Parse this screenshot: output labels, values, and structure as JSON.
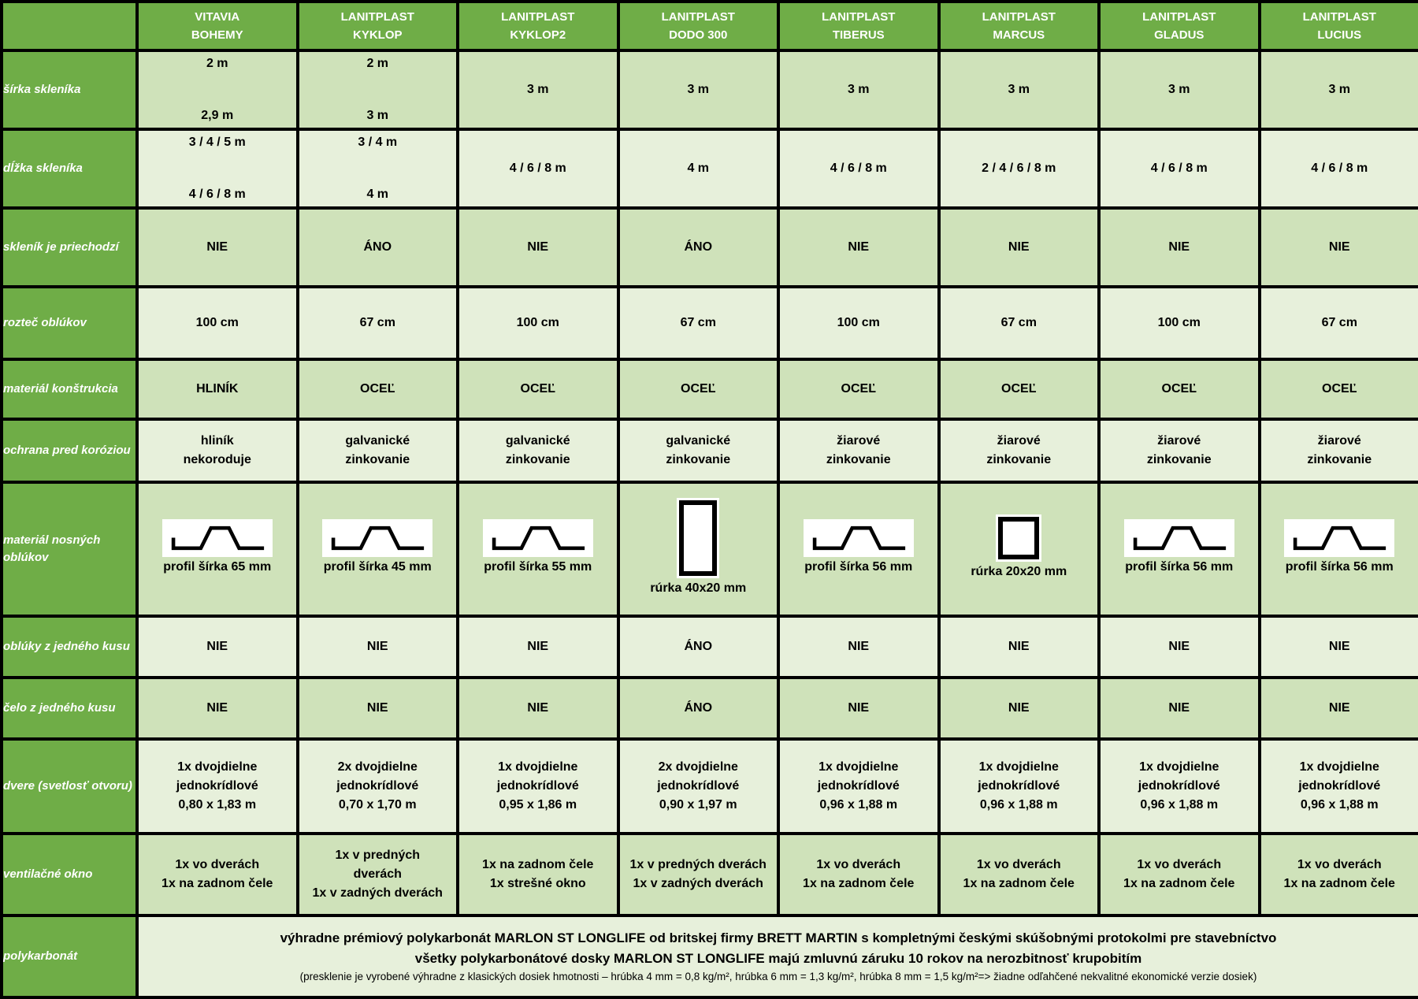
{
  "colors": {
    "header_green": "#6fad47",
    "row_dark": "#cfe2ba",
    "row_light": "#e7f0db",
    "border": "#000000",
    "header_text": "#ffffff",
    "cell_text": "#000000",
    "icon_bg": "#ffffff"
  },
  "table": {
    "corner": "",
    "columns": [
      {
        "line1": "VITAVIA",
        "line2": "BOHEMY"
      },
      {
        "line1": "LANITPLAST",
        "line2": "KYKLOP"
      },
      {
        "line1": "LANITPLAST",
        "line2": "KYKLOP2"
      },
      {
        "line1": "LANITPLAST",
        "line2": "DODO 300"
      },
      {
        "line1": "LANITPLAST",
        "line2": "TIBERUS"
      },
      {
        "line1": "LANITPLAST",
        "line2": "MARCUS"
      },
      {
        "line1": "LANITPLAST",
        "line2": "GLADUS"
      },
      {
        "line1": "LANITPLAST",
        "line2": "LUCIUS"
      }
    ],
    "rows": [
      {
        "id": "sirka-sklenika",
        "label": "šírka skleníka",
        "shade": "dark",
        "spread": true,
        "type": "text",
        "values": [
          [
            "2 m",
            "2,9 m"
          ],
          [
            "2 m",
            "3 m"
          ],
          [
            "3 m"
          ],
          [
            "3 m"
          ],
          [
            "3 m"
          ],
          [
            "3 m"
          ],
          [
            "3 m"
          ],
          [
            "3 m"
          ]
        ]
      },
      {
        "id": "dlzka-sklenika",
        "label": "dĺžka skleníka",
        "shade": "light",
        "spread": true,
        "type": "text",
        "values": [
          [
            "3 / 4 / 5 m",
            "4 / 6 / 8 m"
          ],
          [
            "3 / 4 m",
            "4 m"
          ],
          [
            "4 / 6 / 8 m"
          ],
          [
            "4 m"
          ],
          [
            "4 / 6 / 8 m"
          ],
          [
            "2 / 4 / 6 / 8 m"
          ],
          [
            "4 / 6 / 8 m"
          ],
          [
            "4 / 6 / 8 m"
          ]
        ]
      },
      {
        "id": "sklenik-je-priechodzi",
        "label": "skleník je priechodzí",
        "shade": "dark",
        "type": "text",
        "values": [
          [
            "NIE"
          ],
          [
            "ÁNO"
          ],
          [
            "NIE"
          ],
          [
            "ÁNO"
          ],
          [
            "NIE"
          ],
          [
            "NIE"
          ],
          [
            "NIE"
          ],
          [
            "NIE"
          ]
        ]
      },
      {
        "id": "roztec-oblukov",
        "label": "rozteč oblúkov",
        "shade": "light",
        "type": "text",
        "values": [
          [
            "100 cm"
          ],
          [
            "67 cm"
          ],
          [
            "100 cm"
          ],
          [
            "67 cm"
          ],
          [
            "100 cm"
          ],
          [
            "67 cm"
          ],
          [
            "100 cm"
          ],
          [
            "67 cm"
          ]
        ]
      },
      {
        "id": "material-konstrukcia",
        "label": "materiál konštrukcia",
        "shade": "dark",
        "type": "text",
        "values": [
          [
            "HLINÍK"
          ],
          [
            "OCEĽ"
          ],
          [
            "OCEĽ"
          ],
          [
            "OCEĽ"
          ],
          [
            "OCEĽ"
          ],
          [
            "OCEĽ"
          ],
          [
            "OCEĽ"
          ],
          [
            "OCEĽ"
          ]
        ]
      },
      {
        "id": "ochrana-pred-koroziou",
        "label": "ochrana pred koróziou",
        "shade": "light",
        "type": "text",
        "values": [
          [
            "hliník",
            "nekoroduje"
          ],
          [
            "galvanické",
            "zinkovanie"
          ],
          [
            "galvanické",
            "zinkovanie"
          ],
          [
            "galvanické",
            "zinkovanie"
          ],
          [
            "žiarové",
            "zinkovanie"
          ],
          [
            "žiarové",
            "zinkovanie"
          ],
          [
            "žiarové",
            "zinkovanie"
          ],
          [
            "žiarové",
            "zinkovanie"
          ]
        ]
      },
      {
        "id": "material-nosnych-oblukov",
        "label": "materiál nosných oblúkov",
        "shade": "dark",
        "type": "icons",
        "values": [
          {
            "icon": "profile-trapezoid",
            "label": "profil šírka 65 mm"
          },
          {
            "icon": "profile-trapezoid",
            "label": "profil šírka 45 mm"
          },
          {
            "icon": "profile-trapezoid",
            "label": "profil šírka 55 mm"
          },
          {
            "icon": "tube-rect-tall",
            "label": "rúrka 40x20 mm"
          },
          {
            "icon": "profile-trapezoid",
            "label": "profil šírka 56 mm"
          },
          {
            "icon": "tube-rect-square",
            "label": "rúrka 20x20 mm"
          },
          {
            "icon": "profile-trapezoid",
            "label": "profil šírka 56 mm"
          },
          {
            "icon": "profile-trapezoid",
            "label": "profil šírka 56 mm"
          }
        ]
      },
      {
        "id": "obluky-z-jedneho-kusu",
        "label": "oblúky z jedného kusu",
        "shade": "light",
        "type": "text",
        "values": [
          [
            "NIE"
          ],
          [
            "NIE"
          ],
          [
            "NIE"
          ],
          [
            "ÁNO"
          ],
          [
            "NIE"
          ],
          [
            "NIE"
          ],
          [
            "NIE"
          ],
          [
            "NIE"
          ]
        ]
      },
      {
        "id": "celo-z-jedneho-kusu",
        "label": "čelo z jedného kusu",
        "shade": "dark",
        "type": "text",
        "values": [
          [
            "NIE"
          ],
          [
            "NIE"
          ],
          [
            "NIE"
          ],
          [
            "ÁNO"
          ],
          [
            "NIE"
          ],
          [
            "NIE"
          ],
          [
            "NIE"
          ],
          [
            "NIE"
          ]
        ]
      },
      {
        "id": "dvere-svetlost-otvoru",
        "label": "dvere (svetlosť otvoru)",
        "shade": "light",
        "type": "text",
        "values": [
          [
            "1x dvojdielne",
            "jednokrídlové",
            "0,80 x 1,83 m"
          ],
          [
            "2x dvojdielne",
            "jednokrídlové",
            "0,70 x 1,70 m"
          ],
          [
            "1x dvojdielne",
            "jednokrídlové",
            "0,95 x 1,86 m"
          ],
          [
            "2x dvojdielne",
            "jednokrídlové",
            "0,90 x 1,97 m"
          ],
          [
            "1x dvojdielne",
            "jednokrídlové",
            "0,96 x 1,88 m"
          ],
          [
            "1x dvojdielne",
            "jednokrídlové",
            "0,96 x 1,88 m"
          ],
          [
            "1x dvojdielne",
            "jednokrídlové",
            "0,96 x 1,88 m"
          ],
          [
            "1x dvojdielne",
            "jednokrídlové",
            "0,96 x 1,88 m"
          ]
        ]
      },
      {
        "id": "ventilacne-okno",
        "label": "ventilačné okno",
        "shade": "dark",
        "type": "text",
        "values": [
          [
            "1x vo dverách",
            "1x na zadnom čele"
          ],
          [
            "1x v predných",
            "dverách",
            "1x v zadných dverách"
          ],
          [
            "1x na zadnom čele",
            "1x strešné okno"
          ],
          [
            "1x v predných dverách",
            "1x v zadných dverách"
          ],
          [
            "1x vo dverách",
            "1x na zadnom čele"
          ],
          [
            "1x vo dverách",
            "1x na zadnom čele"
          ],
          [
            "1x vo dverách",
            "1x na zadnom čele"
          ],
          [
            "1x vo dverách",
            "1x na zadnom čele"
          ]
        ]
      }
    ],
    "footer": {
      "id": "polykarbonat",
      "label": "polykarbonát",
      "shade": "light",
      "lines": [
        "výhradne prémiový polykarbonát MARLON ST LONGLIFE od britskej firmy BRETT MARTIN s kompletnými českými skúšobnými protokolmi pre stavebníctvo",
        "všetky polykarbonátové dosky MARLON ST LONGLIFE majú zmluvnú záruku 10 rokov na nerozbitnosť krupobitím",
        "(presklenie je vyrobené výhradne z klasických dosiek hmotnosti – hrúbka 4 mm = 0,8 kg/m², hrúbka 6 mm = 1,3 kg/m², hrúbka 8 mm = 1,5 kg/m²=> žiadne odľahčené nekvalitné ekonomické verzie dosiek)"
      ]
    }
  }
}
